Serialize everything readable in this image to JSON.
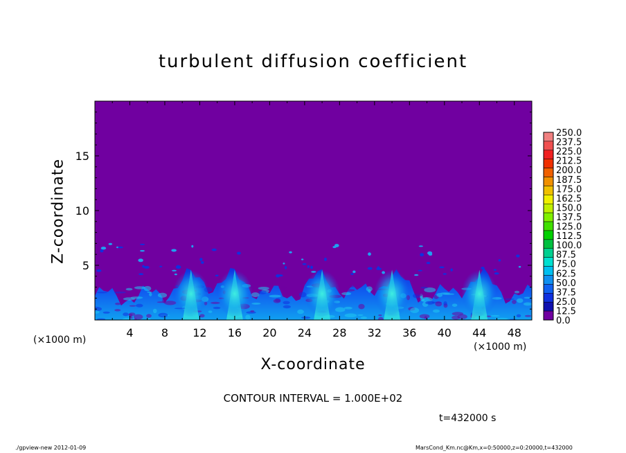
{
  "title": "turbulent diffusion coefficient",
  "footer": {
    "left": "./gpview-new   2012-01-09",
    "right": "MarsCond_Km.nc@Km,x=0:50000,z=0:20000,t=432000"
  },
  "contour_interval": "CONTOUR INTERVAL = 1.000E+02",
  "time": "t=432000 s",
  "chart_data": {
    "type": "heatmap",
    "title": "turbulent diffusion coefficient",
    "xlabel": "X-coordinate",
    "ylabel": "Z-coordinate",
    "x_unit_left": "(×1000 m)",
    "x_unit_right": "(×1000 m)",
    "xlim": [
      0,
      50
    ],
    "ylim": [
      0,
      20
    ],
    "x_ticks": [
      4,
      8,
      12,
      16,
      20,
      24,
      28,
      32,
      36,
      40,
      44,
      48
    ],
    "y_ticks": [
      5,
      10,
      15
    ],
    "background_value": 0.0,
    "turbulent_layer_top_approx": 4,
    "plume_centers_x": [
      11,
      16,
      26,
      34,
      44
    ],
    "colorbar": {
      "levels": [
        "250.0",
        "237.5",
        "225.0",
        "212.5",
        "200.0",
        "187.5",
        "175.0",
        "162.5",
        "150.0",
        "137.5",
        "125.0",
        "112.5",
        "100.0",
        "87.5",
        "75.0",
        "62.5",
        "50.0",
        "37.5",
        "25.0",
        "12.5",
        "0.0"
      ],
      "colors": [
        "#f08080",
        "#f05050",
        "#f02020",
        "#f03000",
        "#f06000",
        "#f09000",
        "#f0c000",
        "#f0f000",
        "#c0f000",
        "#80f000",
        "#40e000",
        "#00d000",
        "#00c040",
        "#00d090",
        "#00e0d0",
        "#00c0f0",
        "#1090f0",
        "#1060f0",
        "#1030e0",
        "#1010b0",
        "#7000a0"
      ]
    }
  }
}
